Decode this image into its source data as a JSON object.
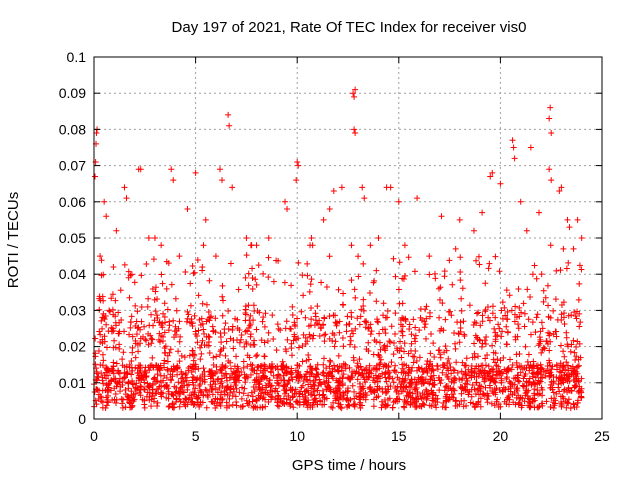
{
  "chart_data": {
    "type": "scatter",
    "title": "Day 197 of 2021, Rate Of TEC Index for receiver vis0",
    "xlabel": "GPS time / hours",
    "ylabel": "ROTI / TECUs",
    "xlim": [
      0,
      25
    ],
    "ylim": [
      0,
      0.1
    ],
    "xticks": [
      0,
      5,
      10,
      15,
      20,
      25
    ],
    "xtick_labels": [
      "0",
      "5",
      "10",
      "15",
      "20",
      "25"
    ],
    "yticks": [
      0,
      0.01,
      0.02,
      0.03,
      0.04,
      0.05,
      0.06,
      0.07,
      0.08,
      0.09,
      0.1
    ],
    "ytick_labels": [
      "0",
      "0.01",
      "0.02",
      "0.03",
      "0.04",
      "0.05",
      "0.06",
      "0.07",
      "0.08",
      "0.09",
      "0.1"
    ],
    "grid": true,
    "marker": "+",
    "color": "#ff0000",
    "data_x_range": [
      0,
      24
    ],
    "series": [
      {
        "name": "ROTI",
        "points": [
          [
            0.05,
            0.067
          ],
          [
            0.08,
            0.071
          ],
          [
            0.1,
            0.076
          ],
          [
            0.12,
            0.079
          ],
          [
            0.15,
            0.08
          ],
          [
            0.5,
            0.06
          ],
          [
            0.6,
            0.056
          ],
          [
            1.1,
            0.052
          ],
          [
            1.5,
            0.064
          ],
          [
            1.6,
            0.061
          ],
          [
            2.2,
            0.069
          ],
          [
            2.3,
            0.069
          ],
          [
            3.0,
            0.05
          ],
          [
            3.8,
            0.069
          ],
          [
            3.9,
            0.066
          ],
          [
            4.6,
            0.058
          ],
          [
            5.0,
            0.068
          ],
          [
            5.5,
            0.055
          ],
          [
            6.2,
            0.069
          ],
          [
            6.3,
            0.066
          ],
          [
            6.6,
            0.084
          ],
          [
            6.65,
            0.081
          ],
          [
            6.8,
            0.064
          ],
          [
            7.5,
            0.05
          ],
          [
            8.6,
            0.05
          ],
          [
            9.4,
            0.06
          ],
          [
            9.5,
            0.058
          ],
          [
            9.95,
            0.066
          ],
          [
            10.0,
            0.071
          ],
          [
            10.05,
            0.07
          ],
          [
            11.3,
            0.055
          ],
          [
            11.8,
            0.063
          ],
          [
            12.2,
            0.064
          ],
          [
            12.75,
            0.09
          ],
          [
            12.8,
            0.089
          ],
          [
            12.85,
            0.091
          ],
          [
            12.8,
            0.08
          ],
          [
            12.85,
            0.079
          ],
          [
            13.2,
            0.064
          ],
          [
            13.3,
            0.061
          ],
          [
            14.0,
            0.05
          ],
          [
            14.4,
            0.064
          ],
          [
            14.6,
            0.064
          ],
          [
            15.0,
            0.06
          ],
          [
            15.3,
            0.048
          ],
          [
            15.9,
            0.061
          ],
          [
            17.1,
            0.056
          ],
          [
            18.0,
            0.055
          ],
          [
            19.5,
            0.067
          ],
          [
            19.6,
            0.068
          ],
          [
            20.0,
            0.065
          ],
          [
            20.6,
            0.077
          ],
          [
            20.65,
            0.075
          ],
          [
            20.7,
            0.072
          ],
          [
            21.0,
            0.06
          ],
          [
            21.5,
            0.075
          ],
          [
            22.4,
            0.083
          ],
          [
            22.45,
            0.086
          ],
          [
            22.5,
            0.079
          ],
          [
            22.4,
            0.069
          ],
          [
            22.5,
            0.066
          ],
          [
            22.9,
            0.063
          ],
          [
            23.0,
            0.064
          ],
          [
            23.3,
            0.055
          ],
          [
            23.4,
            0.053
          ],
          [
            23.8,
            0.055
          ],
          [
            24.0,
            0.05
          ],
          [
            0.3,
            0.045
          ],
          [
            2.7,
            0.05
          ],
          [
            4.2,
            0.045
          ],
          [
            6.0,
            0.045
          ],
          [
            8.0,
            0.048
          ],
          [
            10.7,
            0.05
          ],
          [
            11.6,
            0.058
          ],
          [
            13.6,
            0.048
          ],
          [
            16.5,
            0.045
          ],
          [
            17.8,
            0.047
          ],
          [
            18.7,
            0.052
          ],
          [
            19.1,
            0.057
          ],
          [
            21.3,
            0.052
          ],
          [
            21.9,
            0.057
          ],
          [
            23.1,
            0.047
          ],
          [
            23.6,
            0.047
          ]
        ]
      }
    ]
  }
}
